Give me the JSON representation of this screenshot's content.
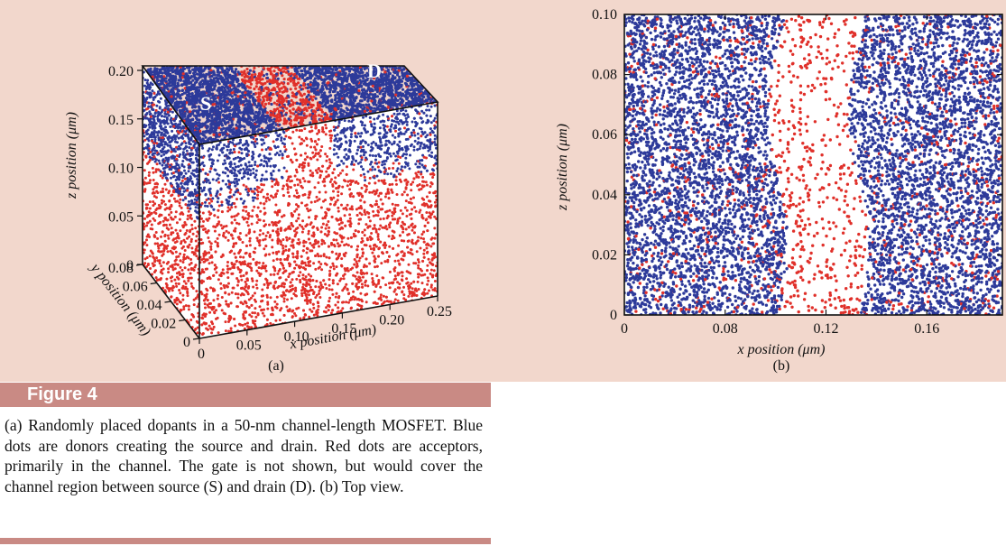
{
  "figure_label": "Figure 4",
  "caption": "(a) Randomly placed dopants in a 50-nm channel-length MOSFET. Blue dots are donors creating the source and drain. Red dots are acceptors, primarily in the channel. The gate is not shown, but would cover the channel region between source (S) and drain (D). (b) Top view.",
  "colors": {
    "donor": "#2d3a9a",
    "acceptor": "#e0302a",
    "panel_bg": "#f2d7cc",
    "bar": "#c98a84"
  },
  "chart_data": [
    {
      "type": "scatter",
      "panel_label": "(a)",
      "projection": "3d",
      "region_labels": {
        "source": "S",
        "drain": "D"
      },
      "xlabel": "x position  (μm)",
      "ylabel": "y position  (μm)",
      "zlabel": "z position  (μm)",
      "xlim": [
        0,
        0.25
      ],
      "ylim": [
        0,
        0.08
      ],
      "zlim": [
        0,
        0.2
      ],
      "x_ticks": [
        "0",
        "0.05",
        "0.10",
        "0.15",
        "0.20",
        "0.25"
      ],
      "y_ticks": [
        "0",
        "0.02",
        "0.04",
        "0.06",
        "0.08"
      ],
      "z_ticks": [
        "0",
        "0.05",
        "0.10",
        "0.15",
        "0.20"
      ],
      "series": [
        {
          "color": "#2d3a9a",
          "region": "source and drain, x < 0.09 and x > 0.14, z > 0.14"
        },
        {
          "color": "#e0302a",
          "region": "channel 0.09 < x < 0.14 and bulk below z = 0.14"
        }
      ]
    },
    {
      "type": "scatter",
      "panel_label": "(b)",
      "xlabel": "x position  (μm)",
      "ylabel": "z position  (μm)",
      "xlim": [
        0.04,
        0.19
      ],
      "ylim": [
        0,
        0.1
      ],
      "x_ticks": [
        "0",
        "0.08",
        "0.12",
        "0.16"
      ],
      "y_ticks": [
        "0",
        "0.02",
        "0.04",
        "0.06",
        "0.08",
        "0.10"
      ],
      "series": [
        {
          "color": "#2d3a9a",
          "region": "x < 0.10 and x > 0.133"
        },
        {
          "color": "#e0302a",
          "region": "scattered, concentrated in channel 0.10 < x < 0.133"
        }
      ]
    }
  ]
}
